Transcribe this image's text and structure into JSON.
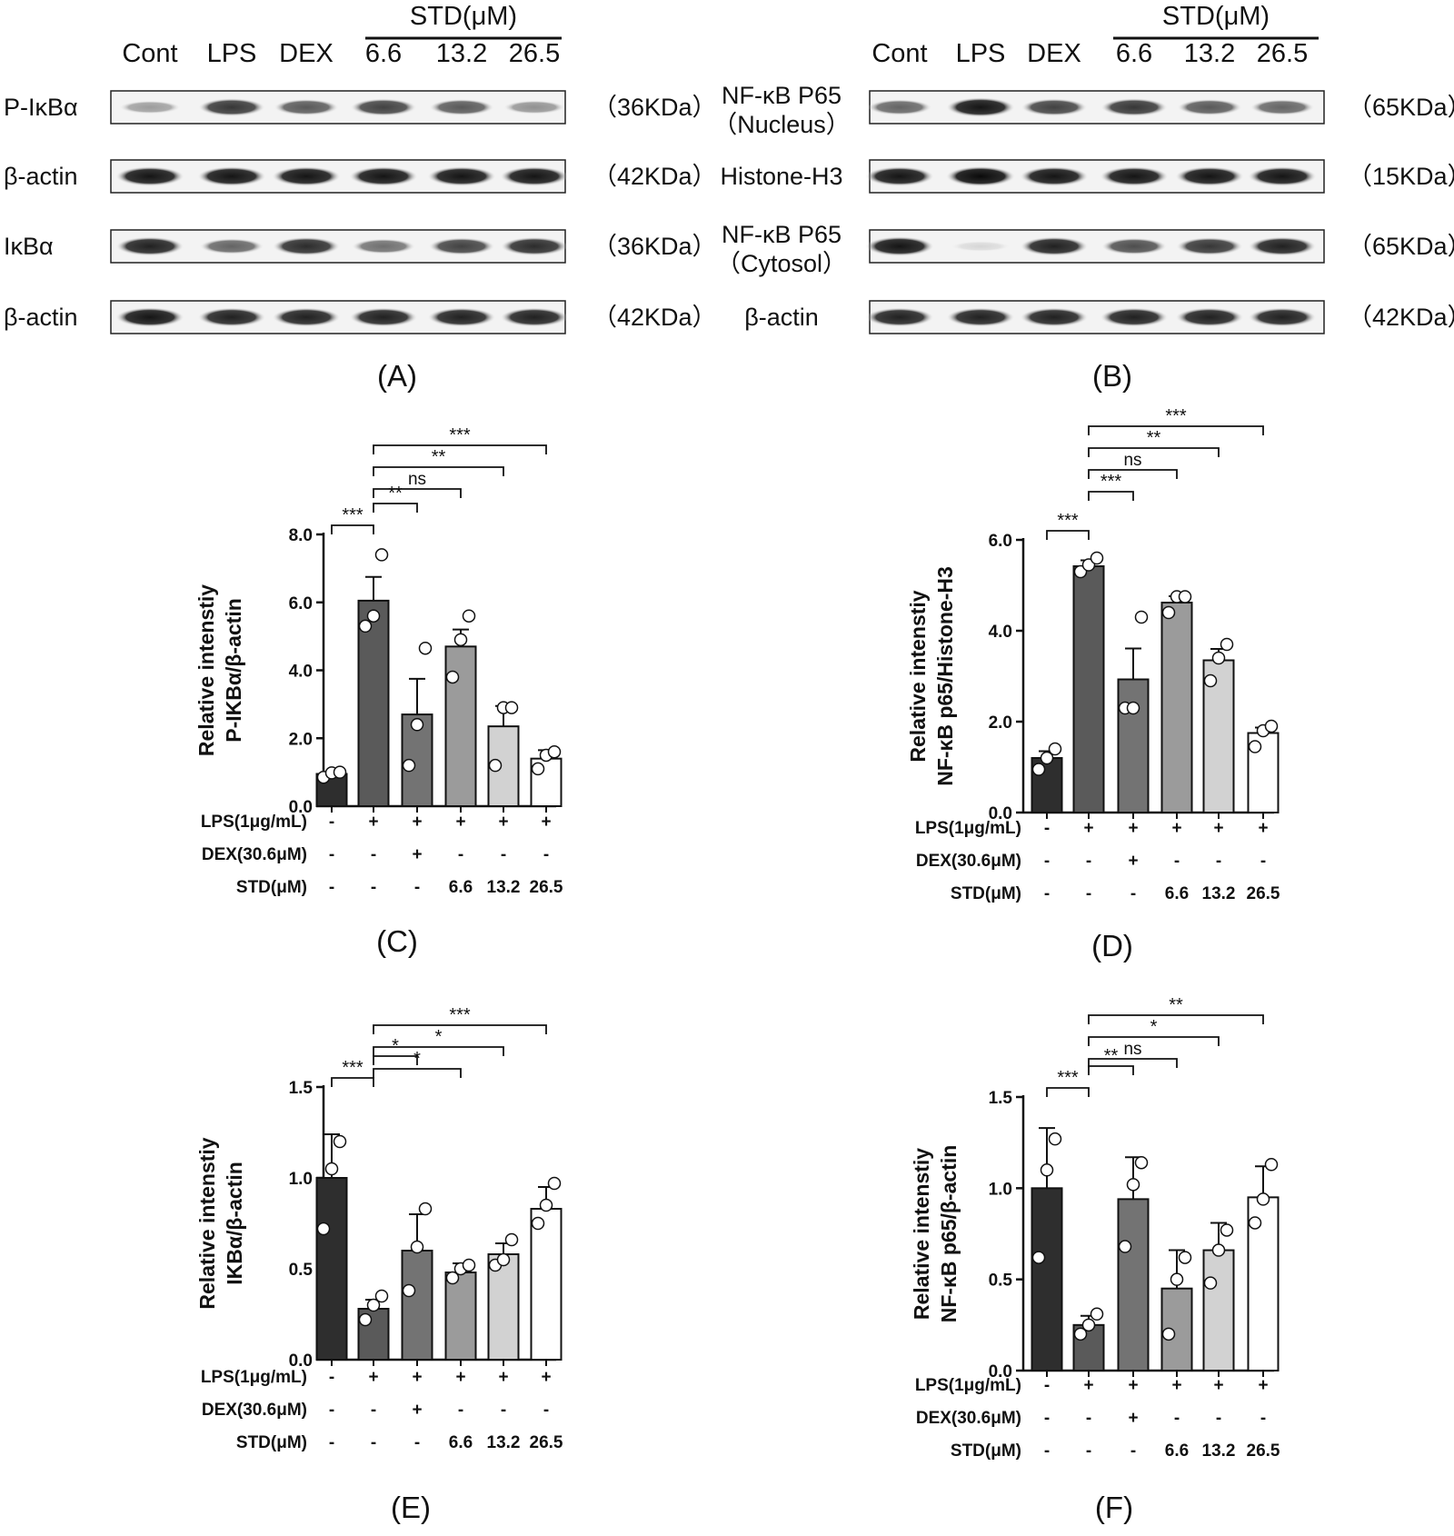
{
  "blots": [
    {
      "panel": "(A)",
      "lanes": [
        "Cont",
        "LPS",
        "DEX",
        "6.6",
        "13.2",
        "26.5"
      ],
      "std_label": "STD(μM)",
      "rows": [
        {
          "label": "P-IκBα",
          "kda": "（36KDa）",
          "intensity": [
            0.35,
            0.8,
            0.65,
            0.75,
            0.65,
            0.4
          ]
        },
        {
          "label": "β-actin",
          "kda": "（42KDa）",
          "intensity": [
            0.95,
            0.95,
            0.95,
            0.95,
            0.95,
            0.95
          ]
        },
        {
          "label": "IκBα",
          "kda": "（36KDa）",
          "intensity": [
            0.9,
            0.6,
            0.85,
            0.55,
            0.75,
            0.85
          ]
        },
        {
          "label": "β-actin",
          "kda": "（42KDa）",
          "intensity": [
            0.95,
            0.9,
            0.9,
            0.9,
            0.9,
            0.9
          ]
        }
      ]
    },
    {
      "panel": "(B)",
      "lanes": [
        "Cont",
        "LPS",
        "DEX",
        "6.6",
        "13.2",
        "26.5"
      ],
      "std_label": "STD(μM)",
      "rows": [
        {
          "label": "NF-κB P65",
          "label2": "（Nucleus）",
          "kda": "（65KDa）",
          "intensity": [
            0.6,
            0.95,
            0.75,
            0.8,
            0.65,
            0.6
          ]
        },
        {
          "label": "Histone-H3",
          "kda": "（15KDa）",
          "intensity": [
            0.95,
            1.0,
            0.95,
            0.95,
            0.95,
            0.95
          ]
        },
        {
          "label": "NF-κB P65",
          "label2": "（Cytosol）",
          "kda": "（65KDa）",
          "intensity": [
            0.95,
            0.1,
            0.9,
            0.7,
            0.8,
            0.9
          ]
        },
        {
          "label": "β-actin",
          "kda": "（42KDa）",
          "intensity": [
            0.9,
            0.9,
            0.9,
            0.9,
            0.9,
            0.9
          ]
        }
      ]
    }
  ],
  "treatment_table": {
    "rows": [
      {
        "label": "LPS(1μg/mL)",
        "values": [
          "-",
          "+",
          "+",
          "+",
          "+",
          "+"
        ]
      },
      {
        "label": "DEX(30.6μM)",
        "values": [
          "-",
          "-",
          "+",
          "-",
          "-",
          "-"
        ]
      },
      {
        "label": "STD(μM)",
        "values": [
          "-",
          "-",
          "-",
          "6.6",
          "13.2",
          "26.5"
        ]
      }
    ]
  },
  "bar_colors": [
    "#2e2e2e",
    "#5a5a5a",
    "#737373",
    "#9b9b9b",
    "#d2d2d2",
    "#ffffff"
  ],
  "chart_data": [
    {
      "panel": "(C)",
      "type": "bar",
      "ylabel": [
        "Relative intenstiy",
        "P-IKBα/β-actin"
      ],
      "ylim": [
        0,
        8
      ],
      "yticks": [
        "0.0",
        "2.0",
        "4.0",
        "6.0",
        "8.0"
      ],
      "values": [
        0.95,
        6.05,
        2.7,
        4.7,
        2.35,
        1.4
      ],
      "errors": [
        0.05,
        0.7,
        1.05,
        0.5,
        0.6,
        0.25
      ],
      "points": [
        [
          0.85,
          0.98,
          1.0
        ],
        [
          5.3,
          5.6,
          7.4
        ],
        [
          1.2,
          2.4,
          4.65
        ],
        [
          3.8,
          4.9,
          5.6
        ],
        [
          1.2,
          2.9,
          2.9
        ],
        [
          1.1,
          1.5,
          1.6
        ]
      ],
      "comparisons": [
        {
          "from": 0,
          "to": 1,
          "label": "***"
        },
        {
          "from": 1,
          "to": 2,
          "label": "**"
        },
        {
          "from": 1,
          "to": 3,
          "label": "ns"
        },
        {
          "from": 1,
          "to": 4,
          "label": "**"
        },
        {
          "from": 1,
          "to": 5,
          "label": "***"
        }
      ]
    },
    {
      "panel": "(D)",
      "type": "bar",
      "ylabel": [
        "Relative intenstiy",
        "NF-κB p65/Histone-H3"
      ],
      "ylim": [
        0,
        6
      ],
      "yticks": [
        "0.0",
        "2.0",
        "4.0",
        "6.0"
      ],
      "values": [
        1.2,
        5.42,
        2.93,
        4.62,
        3.35,
        1.75
      ],
      "errors": [
        0.15,
        0.13,
        0.68,
        0.14,
        0.25,
        0.12
      ],
      "points": [
        [
          0.95,
          1.2,
          1.4
        ],
        [
          5.3,
          5.45,
          5.6
        ],
        [
          2.3,
          2.3,
          4.3
        ],
        [
          4.4,
          4.75,
          4.75
        ],
        [
          2.9,
          3.4,
          3.7
        ],
        [
          1.45,
          1.8,
          1.9
        ]
      ],
      "comparisons": [
        {
          "from": 0,
          "to": 1,
          "label": "***"
        },
        {
          "from": 1,
          "to": 2,
          "label": "***"
        },
        {
          "from": 1,
          "to": 3,
          "label": "ns"
        },
        {
          "from": 1,
          "to": 4,
          "label": "**"
        },
        {
          "from": 1,
          "to": 5,
          "label": "***"
        }
      ]
    },
    {
      "panel": "(E)",
      "type": "bar",
      "ylabel": [
        "Relative intenstiy",
        "IKBα/β-actin"
      ],
      "ylim": [
        0,
        1.5
      ],
      "yticks": [
        "0.0",
        "0.5",
        "1.0",
        "1.5"
      ],
      "values": [
        1.0,
        0.28,
        0.6,
        0.48,
        0.58,
        0.83
      ],
      "errors": [
        0.24,
        0.05,
        0.2,
        0.05,
        0.06,
        0.12
      ],
      "points": [
        [
          0.72,
          1.05,
          1.2
        ],
        [
          0.22,
          0.3,
          0.35
        ],
        [
          0.38,
          0.62,
          0.83
        ],
        [
          0.45,
          0.5,
          0.52
        ],
        [
          0.52,
          0.55,
          0.66
        ],
        [
          0.75,
          0.85,
          0.97
        ]
      ],
      "comparisons": [
        {
          "from": 0,
          "to": 1,
          "label": "***"
        },
        {
          "from": 1,
          "to": 2,
          "label": "*"
        },
        {
          "from": 1,
          "to": 3,
          "label": "*"
        },
        {
          "from": 1,
          "to": 4,
          "label": "*"
        },
        {
          "from": 1,
          "to": 5,
          "label": "***"
        }
      ]
    },
    {
      "panel": "(F)",
      "type": "bar",
      "ylabel": [
        "Relative intenstiy",
        "NF-κB p65/β-actin"
      ],
      "ylim": [
        0,
        1.5
      ],
      "yticks": [
        "0.0",
        "0.5",
        "1.0",
        "1.5"
      ],
      "values": [
        1.0,
        0.25,
        0.94,
        0.45,
        0.66,
        0.95
      ],
      "errors": [
        0.33,
        0.05,
        0.23,
        0.21,
        0.15,
        0.17
      ],
      "points": [
        [
          0.62,
          1.1,
          1.27
        ],
        [
          0.2,
          0.25,
          0.31
        ],
        [
          0.68,
          1.02,
          1.14
        ],
        [
          0.2,
          0.5,
          0.62
        ],
        [
          0.48,
          0.66,
          0.77
        ],
        [
          0.81,
          0.94,
          1.13
        ]
      ],
      "comparisons": [
        {
          "from": 0,
          "to": 1,
          "label": "***"
        },
        {
          "from": 1,
          "to": 2,
          "label": "**"
        },
        {
          "from": 1,
          "to": 3,
          "label": "ns"
        },
        {
          "from": 1,
          "to": 4,
          "label": "*"
        },
        {
          "from": 1,
          "to": 5,
          "label": "**"
        }
      ]
    }
  ]
}
